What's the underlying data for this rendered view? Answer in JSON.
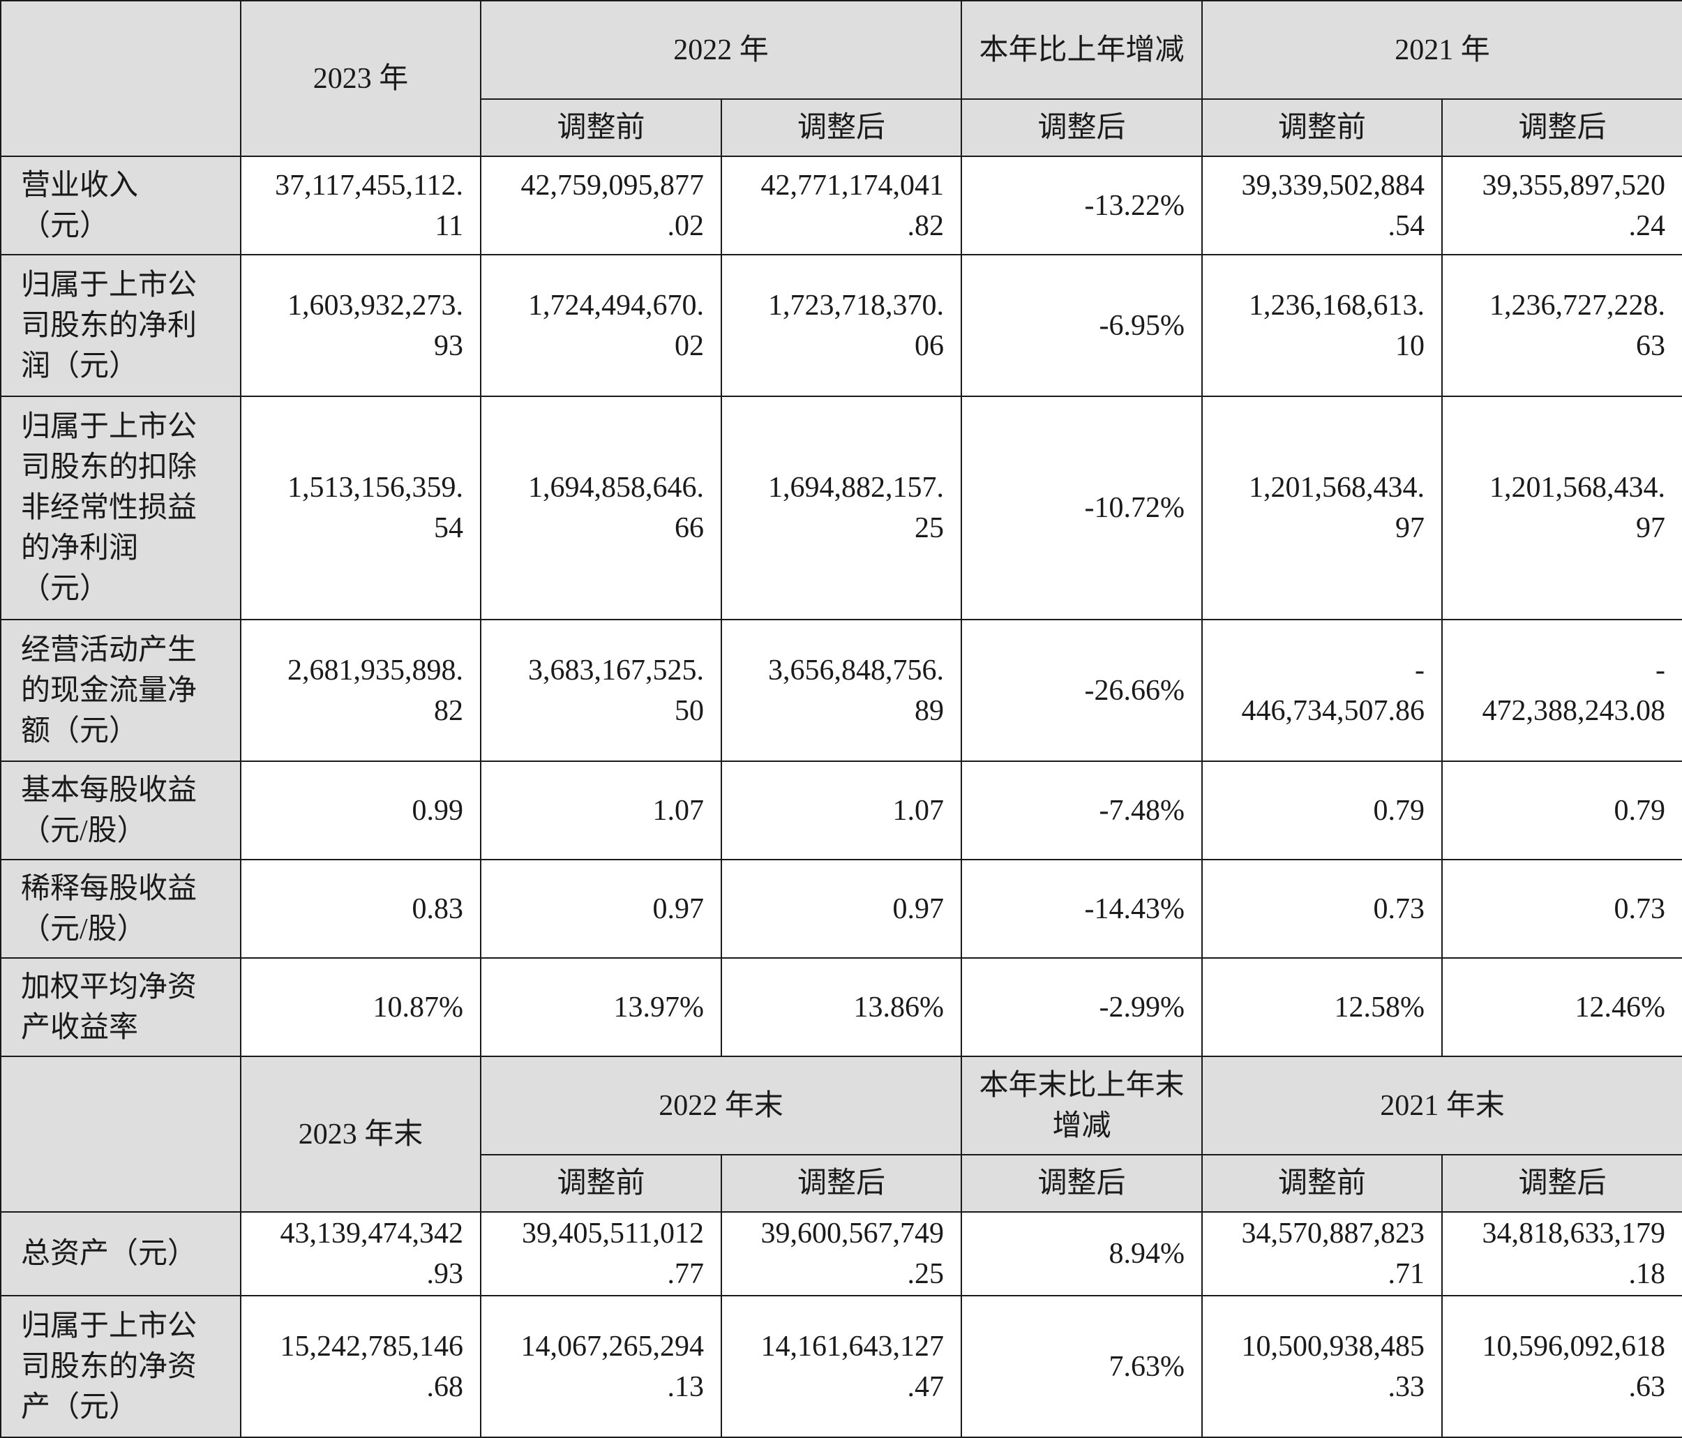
{
  "income": {
    "headers": {
      "y2023": "2023 年",
      "y2022": "2022 年",
      "change": "本年比上年增减",
      "y2021": "2021 年",
      "before": "调整前",
      "after": "调整后"
    },
    "rows": [
      {
        "label": "营业收入\n（元）",
        "v2023": "37,117,455,112.\n11",
        "v2022_before": "42,759,095,877\n.02",
        "v2022_after": "42,771,174,041\n.82",
        "change": "-13.22%",
        "v2021_before": "39,339,502,884\n.54",
        "v2021_after": "39,355,897,520\n.24"
      },
      {
        "label": "归属于上市公\n司股东的净利\n润（元）",
        "v2023": "1,603,932,273.\n93",
        "v2022_before": "1,724,494,670.\n02",
        "v2022_after": "1,723,718,370.\n06",
        "change": "-6.95%",
        "v2021_before": "1,236,168,613.\n10",
        "v2021_after": "1,236,727,228.\n63"
      },
      {
        "label": "归属于上市公\n司股东的扣除\n非经常性损益\n的净利润\n（元）",
        "v2023": "1,513,156,359.\n54",
        "v2022_before": "1,694,858,646.\n66",
        "v2022_after": "1,694,882,157.\n25",
        "change": "-10.72%",
        "v2021_before": "1,201,568,434.\n97",
        "v2021_after": "1,201,568,434.\n97"
      },
      {
        "label": "经营活动产生\n的现金流量净\n额（元）",
        "v2023": "2,681,935,898.\n82",
        "v2022_before": "3,683,167,525.\n50",
        "v2022_after": "3,656,848,756.\n89",
        "change": "-26.66%",
        "v2021_before": "-\n446,734,507.86",
        "v2021_after": "-\n472,388,243.08"
      },
      {
        "label": "基本每股收益\n（元/股）",
        "v2023": "0.99",
        "v2022_before": "1.07",
        "v2022_after": "1.07",
        "change": "-7.48%",
        "v2021_before": "0.79",
        "v2021_after": "0.79"
      },
      {
        "label": "稀释每股收益\n（元/股）",
        "v2023": "0.83",
        "v2022_before": "0.97",
        "v2022_after": "0.97",
        "change": "-14.43%",
        "v2021_before": "0.73",
        "v2021_after": "0.73"
      },
      {
        "label": "加权平均净资\n产收益率",
        "v2023": "10.87%",
        "v2022_before": "13.97%",
        "v2022_after": "13.86%",
        "change": "-2.99%",
        "v2021_before": "12.58%",
        "v2021_after": "12.46%"
      }
    ]
  },
  "balance": {
    "headers": {
      "y2023": "2023 年末",
      "y2022": "2022 年末",
      "change": "本年末比上年末增减",
      "y2021": "2021 年末",
      "before": "调整前",
      "after": "调整后"
    },
    "rows": [
      {
        "label": "总资产（元）",
        "v2023": "43,139,474,342\n.93",
        "v2022_before": "39,405,511,012\n.77",
        "v2022_after": "39,600,567,749\n.25",
        "change": "8.94%",
        "v2021_before": "34,570,887,823\n.71",
        "v2021_after": "34,818,633,179\n.18"
      },
      {
        "label": "归属于上市公\n司股东的净资\n产（元）",
        "v2023": "15,242,785,146\n.68",
        "v2022_before": "14,067,265,294\n.13",
        "v2022_after": "14,161,643,127\n.47",
        "change": "7.63%",
        "v2021_before": "10,500,938,485\n.33",
        "v2021_after": "10,596,092,618\n.63"
      }
    ]
  }
}
